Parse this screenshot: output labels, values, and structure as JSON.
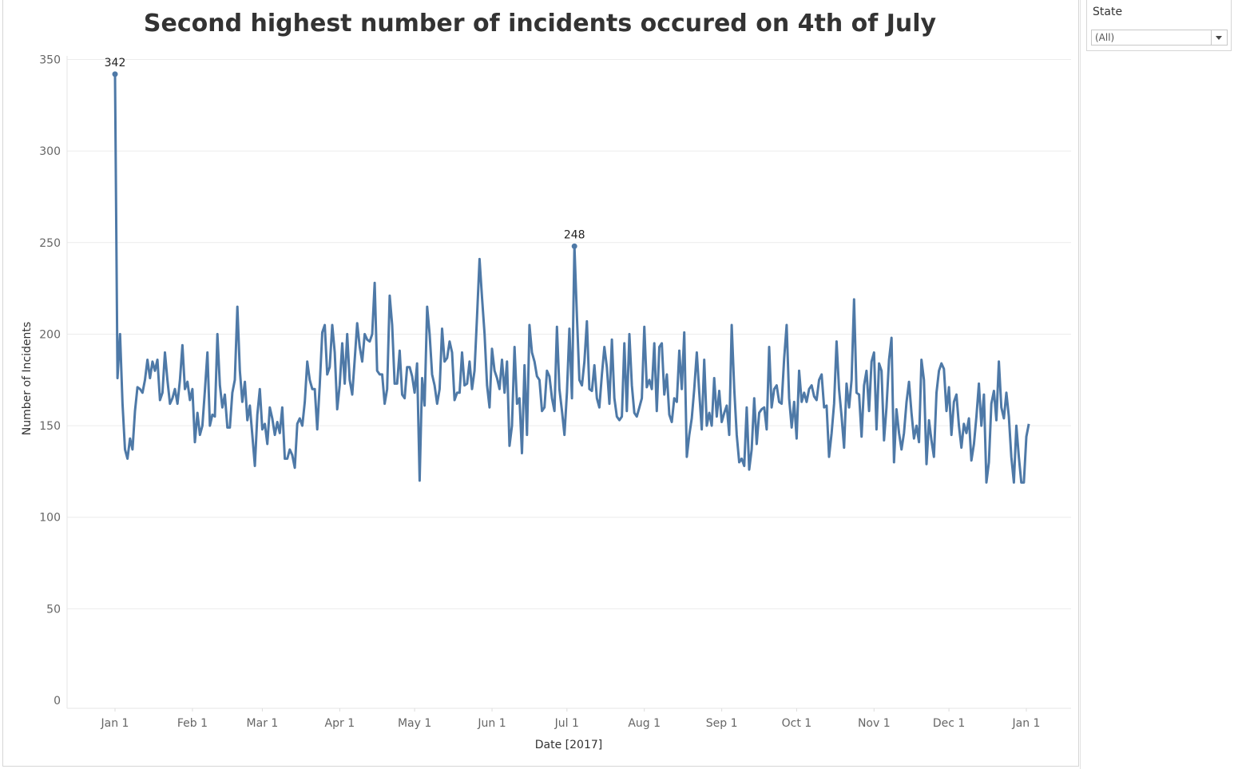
{
  "filter": {
    "title": "State",
    "selected": "(All)"
  },
  "chart_data": {
    "type": "line",
    "title": "Second highest number of incidents occured on 4th of July",
    "xlabel": "Date [2017]",
    "ylabel": "Number of Incidents",
    "ylim": [
      0,
      350
    ],
    "yticks": [
      0,
      50,
      100,
      150,
      200,
      250,
      300,
      350
    ],
    "xticks": [
      {
        "date": "2017-01-01",
        "label": "Jan 1"
      },
      {
        "date": "2017-02-01",
        "label": "Feb 1"
      },
      {
        "date": "2017-03-01",
        "label": "Mar 1"
      },
      {
        "date": "2017-04-01",
        "label": "Apr 1"
      },
      {
        "date": "2017-05-01",
        "label": "May 1"
      },
      {
        "date": "2017-06-01",
        "label": "Jun 1"
      },
      {
        "date": "2017-07-01",
        "label": "Jul 1"
      },
      {
        "date": "2017-08-01",
        "label": "Aug 1"
      },
      {
        "date": "2017-09-01",
        "label": "Sep 1"
      },
      {
        "date": "2017-10-01",
        "label": "Oct 1"
      },
      {
        "date": "2017-11-01",
        "label": "Nov 1"
      },
      {
        "date": "2017-12-01",
        "label": "Dec 1"
      },
      {
        "date": "2018-01-01",
        "label": "Jan 1"
      }
    ],
    "grid": true,
    "color": "#4e79a7",
    "annotations": [
      {
        "date": "2017-01-01",
        "value": 342,
        "label": "342"
      },
      {
        "date": "2017-07-04",
        "value": 248,
        "label": "248"
      }
    ],
    "start_date": "2017-01-01",
    "series": [
      {
        "values": [
          342,
          176,
          200,
          162,
          137,
          132,
          143,
          137,
          158,
          171,
          170,
          168,
          175,
          186,
          176,
          185,
          180,
          186,
          164,
          168,
          190,
          175,
          162,
          165,
          170,
          162,
          175,
          194,
          170,
          174,
          164,
          170,
          141,
          157,
          145,
          150,
          169,
          190,
          150,
          156,
          155,
          200,
          172,
          160,
          167,
          149,
          149,
          168,
          175,
          215,
          180,
          163,
          174,
          153,
          161,
          145,
          128,
          156,
          170,
          148,
          151,
          140,
          160,
          154,
          145,
          152,
          146,
          160,
          132,
          132,
          137,
          134,
          127,
          151,
          154,
          150,
          163,
          185,
          175,
          170,
          170,
          148,
          172,
          201,
          205,
          178,
          182,
          205,
          190,
          159,
          172,
          195,
          173,
          200,
          175,
          167,
          186,
          206,
          193,
          185,
          200,
          197,
          196,
          200,
          228,
          180,
          178,
          178,
          162,
          170,
          221,
          205,
          173,
          173,
          191,
          167,
          165,
          182,
          182,
          177,
          168,
          184,
          120,
          176,
          161,
          215,
          200,
          178,
          172,
          162,
          170,
          203,
          185,
          187,
          196,
          190,
          164,
          168,
          168,
          190,
          172,
          173,
          185,
          170,
          180,
          210,
          241,
          220,
          200,
          172,
          160,
          192,
          180,
          176,
          170,
          186,
          168,
          185,
          139,
          150,
          193,
          162,
          165,
          135,
          183,
          145,
          205,
          190,
          185,
          177,
          175,
          158,
          160,
          180,
          177,
          165,
          158,
          204,
          170,
          158,
          145,
          168,
          203,
          165,
          248,
          210,
          175,
          172,
          185,
          207,
          170,
          169,
          183,
          165,
          160,
          178,
          193,
          182,
          162,
          197,
          165,
          155,
          153,
          155,
          195,
          158,
          200,
          172,
          157,
          155,
          160,
          165,
          204,
          171,
          175,
          170,
          195,
          158,
          193,
          195,
          167,
          178,
          156,
          152,
          165,
          163,
          191,
          170,
          201,
          133,
          145,
          154,
          170,
          190,
          168,
          148,
          186,
          150,
          157,
          150,
          176,
          155,
          169,
          152,
          157,
          161,
          145,
          205,
          170,
          145,
          130,
          132,
          128,
          160,
          126,
          137,
          165,
          140,
          157,
          159,
          160,
          148,
          193,
          160,
          170,
          172,
          163,
          162,
          187,
          205,
          165,
          149,
          163,
          143,
          180,
          163,
          168,
          163,
          170,
          172,
          166,
          164,
          175,
          178,
          160,
          161,
          133,
          146,
          162,
          196,
          170,
          155,
          138,
          173,
          160,
          175,
          219,
          168,
          167,
          144,
          172,
          180,
          158,
          185,
          190,
          148,
          184,
          180,
          142,
          160,
          186,
          198,
          130,
          159,
          146,
          137,
          146,
          163,
          174,
          157,
          143,
          150,
          141,
          186,
          175,
          129,
          153,
          142,
          133,
          168,
          180,
          184,
          181,
          158,
          171,
          145,
          163,
          167,
          150,
          138,
          151,
          146,
          154,
          131,
          140,
          155,
          173,
          150,
          167,
          119,
          130,
          162,
          169,
          153,
          185,
          160,
          154,
          168,
          155,
          133,
          119,
          150,
          133,
          119,
          119,
          144,
          151
        ]
      }
    ]
  }
}
